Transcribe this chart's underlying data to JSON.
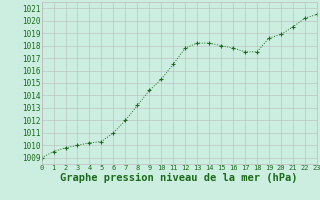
{
  "x": [
    0,
    1,
    2,
    3,
    4,
    5,
    6,
    7,
    8,
    9,
    10,
    11,
    12,
    13,
    14,
    15,
    16,
    17,
    18,
    19,
    20,
    21,
    22,
    23
  ],
  "y": [
    1009.0,
    1009.5,
    1009.8,
    1010.0,
    1010.2,
    1010.3,
    1011.0,
    1012.0,
    1013.2,
    1014.4,
    1015.3,
    1016.5,
    1017.8,
    1018.2,
    1018.2,
    1018.0,
    1017.8,
    1017.5,
    1017.5,
    1018.6,
    1018.9,
    1019.5,
    1020.2,
    1020.5
  ],
  "xlim": [
    0,
    23
  ],
  "ylim": [
    1008.5,
    1021.5
  ],
  "yticks": [
    1009,
    1010,
    1011,
    1012,
    1013,
    1014,
    1015,
    1016,
    1017,
    1018,
    1019,
    1020,
    1021
  ],
  "xticks": [
    0,
    1,
    2,
    3,
    4,
    5,
    6,
    7,
    8,
    9,
    10,
    11,
    12,
    13,
    14,
    15,
    16,
    17,
    18,
    19,
    20,
    21,
    22,
    23
  ],
  "xlabel": "Graphe pression niveau de la mer (hPa)",
  "line_color": "#1a6b1a",
  "marker": "+",
  "bg_color": "#cceee0",
  "grid_color": "#bbbbbb",
  "xlabel_fontsize": 7.5,
  "ytick_fontsize": 5.5,
  "xtick_fontsize": 5.0
}
